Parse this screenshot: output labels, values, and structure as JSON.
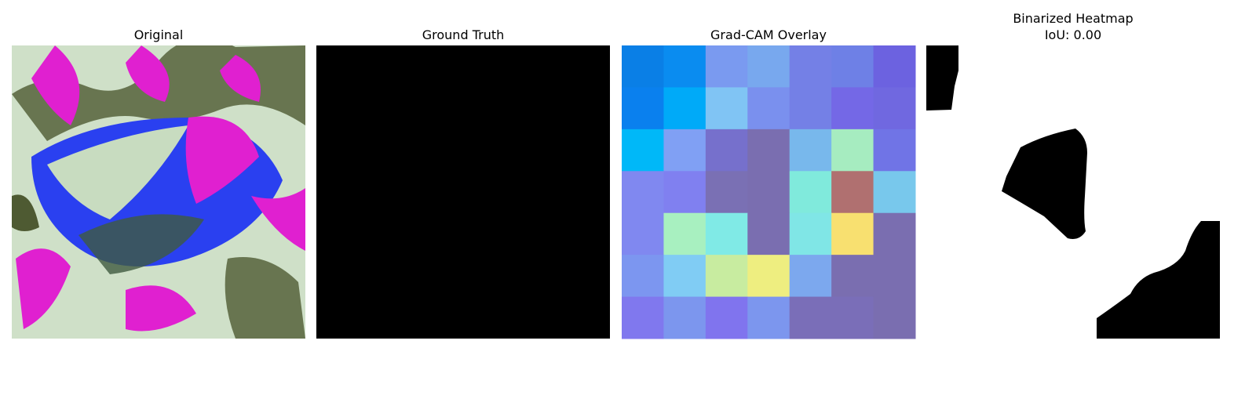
{
  "panels": [
    {
      "title": "Original"
    },
    {
      "title": "Ground Truth"
    },
    {
      "title": "Grad-CAM Overlay"
    },
    {
      "title": "Binarized Heatmap",
      "subtitle": "IoU: 0.00"
    }
  ]
}
